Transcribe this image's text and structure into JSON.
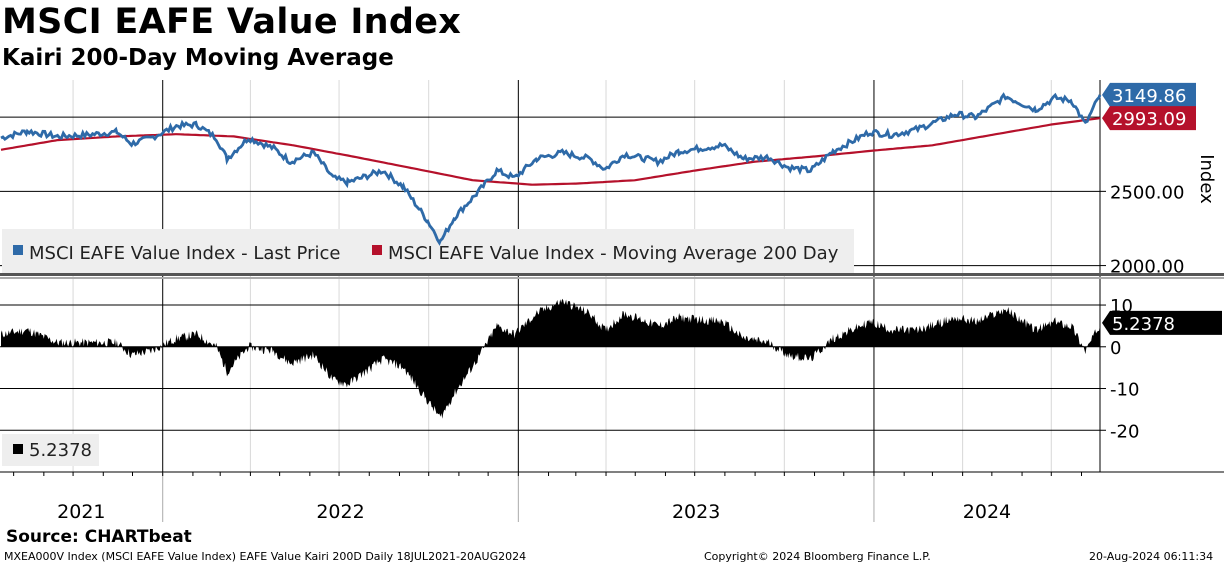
{
  "header": {
    "title": "MSCI EAFE Value Index",
    "subtitle": "Kairi 200-Day Moving Average"
  },
  "footer": {
    "source": "Source: CHARTbeat",
    "left": "MXEA000V Index (MSCI EAFE Value Index) EAFE Value Kairi 200D  Daily 18JUL2021-20AUG2024",
    "center": "Copyright© 2024 Bloomberg Finance L.P.",
    "right": "20-Aug-2024 06:11:34"
  },
  "colors": {
    "price": "#2e6aa8",
    "moving_average": "#b5112b",
    "kairi": "#000000",
    "grid": "#000000"
  },
  "chart_data": [
    {
      "type": "line",
      "y_axis_label": "Index",
      "y_ticks": [
        "2000.00",
        "2500.00"
      ],
      "ylim": [
        1950,
        3250
      ],
      "x_year_labels": [
        "2021",
        "2022",
        "2023",
        "2024"
      ],
      "x_range": [
        "2021-07-18",
        "2024-08-20"
      ],
      "grid": true,
      "legend_position": "bottom-left",
      "series": [
        {
          "name": "MSCI EAFE Value Index - Last Price",
          "last_value": "3149.86",
          "points": [
            [
              "2021-07-19",
              2860
            ],
            [
              "2021-08-15",
              2905
            ],
            [
              "2021-09-15",
              2870
            ],
            [
              "2021-10-15",
              2880
            ],
            [
              "2021-11-15",
              2900
            ],
            [
              "2021-11-30",
              2820
            ],
            [
              "2021-12-20",
              2860
            ],
            [
              "2022-01-15",
              2940
            ],
            [
              "2022-02-05",
              2950
            ],
            [
              "2022-02-25",
              2860
            ],
            [
              "2022-03-08",
              2720
            ],
            [
              "2022-03-30",
              2860
            ],
            [
              "2022-04-25",
              2790
            ],
            [
              "2022-05-12",
              2700
            ],
            [
              "2022-06-05",
              2760
            ],
            [
              "2022-06-25",
              2590
            ],
            [
              "2022-07-10",
              2560
            ],
            [
              "2022-08-15",
              2640
            ],
            [
              "2022-09-05",
              2530
            ],
            [
              "2022-09-30",
              2300
            ],
            [
              "2022-10-13",
              2160
            ],
            [
              "2022-10-28",
              2330
            ],
            [
              "2022-11-20",
              2490
            ],
            [
              "2022-12-10",
              2640
            ],
            [
              "2022-12-28",
              2590
            ],
            [
              "2023-01-20",
              2720
            ],
            [
              "2023-02-15",
              2760
            ],
            [
              "2023-03-15",
              2720
            ],
            [
              "2023-03-31",
              2650
            ],
            [
              "2023-04-20",
              2750
            ],
            [
              "2023-05-25",
              2700
            ],
            [
              "2023-06-15",
              2770
            ],
            [
              "2023-07-30",
              2810
            ],
            [
              "2023-08-20",
              2720
            ],
            [
              "2023-09-15",
              2730
            ],
            [
              "2023-10-05",
              2660
            ],
            [
              "2023-10-28",
              2640
            ],
            [
              "2023-11-20",
              2770
            ],
            [
              "2023-12-28",
              2900
            ],
            [
              "2024-01-20",
              2880
            ],
            [
              "2024-02-15",
              2920
            ],
            [
              "2024-03-25",
              3020
            ],
            [
              "2024-04-15",
              3000
            ],
            [
              "2024-05-15",
              3140
            ],
            [
              "2024-06-15",
              3050
            ],
            [
              "2024-07-05",
              3130
            ],
            [
              "2024-07-22",
              3110
            ],
            [
              "2024-08-05",
              2950
            ],
            [
              "2024-08-20",
              3149.86
            ]
          ]
        },
        {
          "name": "MSCI EAFE Value Index - Moving Average 200 Day",
          "last_value": "2993.09",
          "points": [
            [
              "2021-07-19",
              2780
            ],
            [
              "2021-09-15",
              2845
            ],
            [
              "2021-11-15",
              2870
            ],
            [
              "2022-01-15",
              2885
            ],
            [
              "2022-03-15",
              2870
            ],
            [
              "2022-05-15",
              2810
            ],
            [
              "2022-07-15",
              2735
            ],
            [
              "2022-09-15",
              2655
            ],
            [
              "2022-11-15",
              2575
            ],
            [
              "2023-01-15",
              2545
            ],
            [
              "2023-03-01",
              2552
            ],
            [
              "2023-05-01",
              2575
            ],
            [
              "2023-07-01",
              2640
            ],
            [
              "2023-09-01",
              2700
            ],
            [
              "2023-11-01",
              2735
            ],
            [
              "2024-01-01",
              2775
            ],
            [
              "2024-03-01",
              2810
            ],
            [
              "2024-05-01",
              2880
            ],
            [
              "2024-07-01",
              2950
            ],
            [
              "2024-08-20",
              2993.09
            ]
          ]
        }
      ]
    },
    {
      "type": "bar",
      "name": "Kairi 200-Day",
      "y_ticks": [
        "10",
        "0",
        "-10",
        "-20"
      ],
      "ylim": [
        -30,
        16
      ],
      "legend_value": "5.2378",
      "last_value": "5.2378",
      "grid": true,
      "points": [
        [
          "2021-07-19",
          3
        ],
        [
          "2021-08-15",
          4
        ],
        [
          "2021-09-15",
          1
        ],
        [
          "2021-10-15",
          1
        ],
        [
          "2021-11-15",
          1
        ],
        [
          "2021-11-30",
          -2
        ],
        [
          "2021-12-20",
          -1
        ],
        [
          "2022-01-15",
          2
        ],
        [
          "2022-02-05",
          3
        ],
        [
          "2022-02-25",
          0
        ],
        [
          "2022-03-08",
          -6
        ],
        [
          "2022-03-30",
          0
        ],
        [
          "2022-04-25",
          -1
        ],
        [
          "2022-05-12",
          -4
        ],
        [
          "2022-06-05",
          -2
        ],
        [
          "2022-06-25",
          -8
        ],
        [
          "2022-07-10",
          -9
        ],
        [
          "2022-08-15",
          -3
        ],
        [
          "2022-09-05",
          -5
        ],
        [
          "2022-09-30",
          -13
        ],
        [
          "2022-10-13",
          -17
        ],
        [
          "2022-10-28",
          -11
        ],
        [
          "2022-11-20",
          -3
        ],
        [
          "2022-12-10",
          5
        ],
        [
          "2022-12-28",
          3
        ],
        [
          "2023-01-20",
          8
        ],
        [
          "2023-02-15",
          11
        ],
        [
          "2023-03-15",
          8
        ],
        [
          "2023-03-31",
          4
        ],
        [
          "2023-04-20",
          8
        ],
        [
          "2023-05-25",
          5
        ],
        [
          "2023-06-15",
          7
        ],
        [
          "2023-07-30",
          6
        ],
        [
          "2023-08-20",
          2
        ],
        [
          "2023-09-15",
          1
        ],
        [
          "2023-10-05",
          -2
        ],
        [
          "2023-10-28",
          -3
        ],
        [
          "2023-11-20",
          2
        ],
        [
          "2023-12-28",
          6
        ],
        [
          "2024-01-20",
          4
        ],
        [
          "2024-02-15",
          4
        ],
        [
          "2024-03-25",
          7
        ],
        [
          "2024-04-15",
          6
        ],
        [
          "2024-05-15",
          9
        ],
        [
          "2024-06-15",
          4
        ],
        [
          "2024-07-05",
          6
        ],
        [
          "2024-07-22",
          5
        ],
        [
          "2024-08-05",
          -1
        ],
        [
          "2024-08-20",
          5.2378
        ]
      ]
    }
  ]
}
